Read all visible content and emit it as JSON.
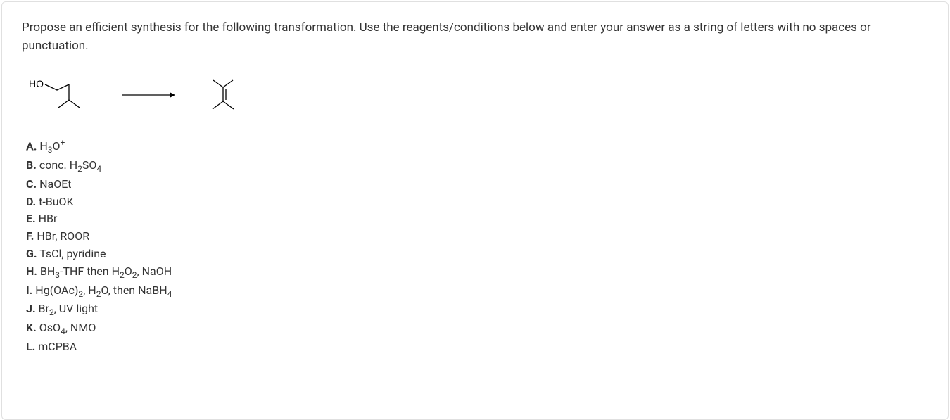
{
  "question": {
    "text_line1": "Propose an efficient synthesis for the following transformation. Use the reagents/conditions below and enter your answer as a string",
    "text_line2": "of letters with no spaces or punctuation."
  },
  "reaction": {
    "starting_material_label": "HO",
    "arrow": "→",
    "molecule_stroke": "#000000",
    "molecule_stroke_width": 1.3
  },
  "options": [
    {
      "letter": "A.",
      "label_html": "H<sub>3</sub>O<sup>+</sup>"
    },
    {
      "letter": "B.",
      "label_html": "conc. H<sub>2</sub>SO<sub>4</sub>"
    },
    {
      "letter": "C.",
      "label_html": "NaOEt"
    },
    {
      "letter": "D.",
      "label_html": "t-BuOK"
    },
    {
      "letter": "E.",
      "label_html": "HBr"
    },
    {
      "letter": "F.",
      "label_html": "HBr, ROOR"
    },
    {
      "letter": "G.",
      "label_html": "TsCl, pyridine"
    },
    {
      "letter": "H.",
      "label_html": "BH<sub>3</sub>-THF then H<sub>2</sub>O<sub>2</sub>, NaOH"
    },
    {
      "letter": "I.",
      "label_html": "Hg(OAc)<sub>2</sub>, H<sub>2</sub>O, then NaBH<sub>4</sub>"
    },
    {
      "letter": "J.",
      "label_html": "Br<sub>2</sub>, UV light"
    },
    {
      "letter": "K.",
      "label_html": "OsO<sub>4</sub>, NMO"
    },
    {
      "letter": "L.",
      "label_html": "mCPBA"
    }
  ],
  "colors": {
    "text": "#333333",
    "border": "#e0e0e0",
    "background": "#ffffff"
  }
}
